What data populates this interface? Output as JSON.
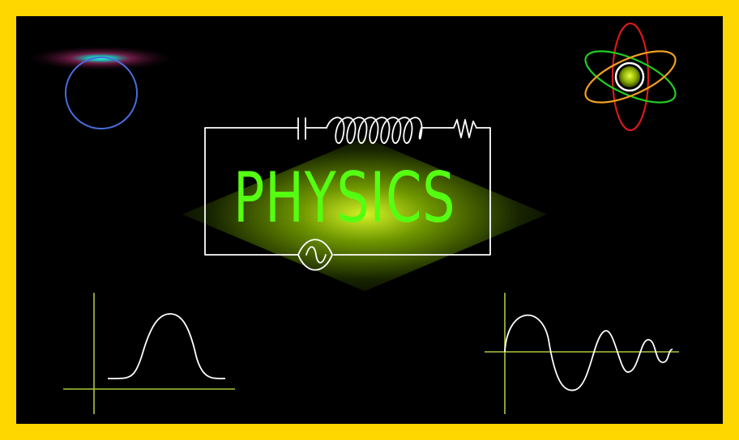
{
  "title": "PHYSICS",
  "colors": {
    "frame": "#FFD700",
    "background": "#000000",
    "title": "#55FF11",
    "circuit": "#FFFFFF",
    "axes": "#A8C83C",
    "curve": "#FFFFFF",
    "circle": "#4A6CDB",
    "atom_orbit_red": "#D81A1A",
    "atom_orbit_green": "#22CC22",
    "atom_orbit_orange": "#F0A020",
    "atom_nucleus": "#AACC00"
  },
  "icons": {
    "circuit": "lc-circuit-icon",
    "capacitor": "capacitor-icon",
    "inductor": "inductor-coil-icon",
    "resistor": "resistor-icon",
    "ac_source": "ac-source-icon",
    "atom": "atom-icon",
    "ring": "glowing-ring-icon",
    "gaussian": "bell-curve-graph-icon",
    "damped_wave": "damped-wave-graph-icon"
  }
}
